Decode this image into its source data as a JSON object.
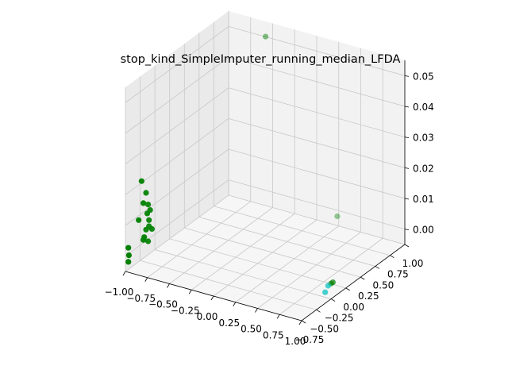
{
  "chart_data": {
    "type": "scatter3d",
    "title": "stop_kind_SimpleImputer_running_median_LFDA",
    "x_ticks": [
      "−1.00",
      "−0.75",
      "−0.50",
      "−0.25",
      "0.00",
      "0.25",
      "0.50",
      "0.75",
      "1.00"
    ],
    "y_ticks": [
      "−0.75",
      "−0.50",
      "−0.25",
      "0.00",
      "0.25",
      "0.50",
      "0.75",
      "1.00"
    ],
    "z_ticks": [
      "0.00",
      "0.01",
      "0.02",
      "0.03",
      "0.04",
      "0.05"
    ],
    "xlim": [
      -1.0,
      1.0
    ],
    "ylim": [
      -0.75,
      1.0
    ],
    "zlim": [
      -0.005,
      0.055
    ],
    "grid": true,
    "series": [
      {
        "color": "#008000",
        "points": [
          {
            "x": -0.48,
            "y": 0.85,
            "z": 0.053
          },
          {
            "x": -0.95,
            "y": -0.55,
            "z": 0.022
          },
          {
            "x": -0.92,
            "y": -0.52,
            "z": 0.018
          },
          {
            "x": -0.93,
            "y": -0.55,
            "z": 0.015
          },
          {
            "x": -0.91,
            "y": -0.5,
            "z": 0.014
          },
          {
            "x": -0.9,
            "y": -0.48,
            "z": 0.012
          },
          {
            "x": -0.92,
            "y": -0.5,
            "z": 0.011
          },
          {
            "x": -0.9,
            "y": -0.5,
            "z": 0.009
          },
          {
            "x": -0.95,
            "y": -0.6,
            "z": 0.01
          },
          {
            "x": -0.9,
            "y": -0.5,
            "z": 0.007
          },
          {
            "x": -0.92,
            "y": -0.52,
            "z": 0.006
          },
          {
            "x": -0.92,
            "y": -0.55,
            "z": 0.004
          },
          {
            "x": -0.93,
            "y": -0.55,
            "z": 0.003
          },
          {
            "x": -0.88,
            "y": -0.48,
            "z": 0.006
          },
          {
            "x": -0.91,
            "y": -0.5,
            "z": 0.002
          },
          {
            "x": -1.0,
            "y": -0.7,
            "z": 0.002
          },
          {
            "x": -0.98,
            "y": -0.72,
            "z": 0.0
          },
          {
            "x": -0.98,
            "y": -0.73,
            "z": -0.002
          },
          {
            "x": 0.3,
            "y": 0.9,
            "z": 0.0
          },
          {
            "x": 1.0,
            "y": -0.25,
            "z": 0.0
          },
          {
            "x": 1.0,
            "y": -0.22,
            "z": 0.0
          }
        ]
      },
      {
        "color": "#00bfbf",
        "points": [
          {
            "x": 1.0,
            "y": -0.3,
            "z": 0.0
          },
          {
            "x": 0.98,
            "y": -0.32,
            "z": -0.002
          }
        ]
      }
    ]
  }
}
